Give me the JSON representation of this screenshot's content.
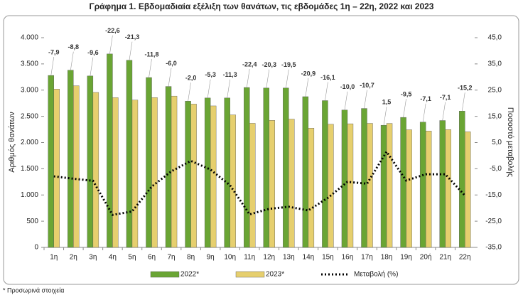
{
  "chart_data": {
    "type": "bar-line",
    "title": "Γράφημα 1.  Εβδομαδιαία εξέλιξη των θανάτων, τις εβδομάδες 1η – 22η, 2022 και 2023",
    "ylabel": "Αριθμός θανάτων",
    "y2label": "Ποσοστό μεταβολής",
    "footnote": "* Προσωρινά στοιχεία",
    "categories": [
      "1η",
      "2η",
      "3η",
      "4η",
      "5η",
      "6η",
      "7η",
      "8η",
      "9η",
      "10η",
      "11η",
      "12η",
      "13η",
      "14η",
      "15η",
      "16η",
      "17η",
      "18η",
      "19η",
      "20ή",
      "21η",
      "22η"
    ],
    "series": [
      {
        "name": "2022*",
        "color": "#6aa534",
        "values": [
          3280,
          3380,
          3270,
          3690,
          3570,
          3240,
          3070,
          2790,
          2850,
          2850,
          3050,
          3040,
          3040,
          2875,
          2800,
          2620,
          2650,
          2330,
          2480,
          2390,
          2420,
          2600
        ]
      },
      {
        "name": "2023*",
        "color": "#e6cf6e",
        "values": [
          3021,
          3083,
          2956,
          2856,
          2810,
          2858,
          2886,
          2734,
          2699,
          2528,
          2367,
          2423,
          2447,
          2274,
          2349,
          2358,
          2366,
          2365,
          2244,
          2220,
          2248,
          2205
        ]
      },
      {
        "name": "Μεταβολή (%)",
        "color": "#000000",
        "axis": "y2",
        "values": [
          -7.9,
          -8.8,
          -9.6,
          -22.6,
          -21.3,
          -11.8,
          -6.0,
          -2.0,
          -5.3,
          -11.3,
          -22.4,
          -20.3,
          -19.5,
          -20.9,
          -16.1,
          -10.0,
          -10.7,
          1.5,
          -9.5,
          -7.1,
          -7.1,
          -15.2
        ],
        "value_labels": [
          "-7,9",
          "-8,8",
          "-9,6",
          "-22,6",
          "-21,3",
          "-11,8",
          "-6,0",
          "-2,0",
          "-5,3",
          "-11,3",
          "-22,4",
          "-20,3",
          "-19,5",
          "-20,9",
          "-16,1",
          "-10,0",
          "-10,7",
          "1,5",
          "-9,5",
          "-7,1",
          "-7,1",
          "-15,2"
        ]
      }
    ],
    "ylim": [
      0,
      4000
    ],
    "yticks": [
      0,
      {
        "value": 500,
        "label": "500"
      },
      {
        "value": 1000,
        "label": "1.000"
      },
      {
        "value": 1500,
        "label": "1.500"
      },
      {
        "value": 2000,
        "label": "2.000"
      },
      {
        "value": 2500,
        "label": "2.500"
      },
      {
        "value": 3000,
        "label": "3.000"
      },
      {
        "value": 3500,
        "label": "3.500"
      },
      {
        "value": 4000,
        "label": "4.000"
      }
    ],
    "y2lim": [
      -35,
      45
    ],
    "y2ticks": [
      {
        "value": -35,
        "label": "-35,0"
      },
      {
        "value": -25,
        "label": "-25,0"
      },
      {
        "value": -15,
        "label": "-15,0"
      },
      {
        "value": -5,
        "label": "-5,0"
      },
      {
        "value": 5,
        "label": "5,0"
      },
      {
        "value": 15,
        "label": "15,0"
      },
      {
        "value": 25,
        "label": "25,0"
      },
      {
        "value": 35,
        "label": "35,0"
      },
      {
        "value": 45,
        "label": "45,0"
      }
    ],
    "grid": false,
    "legend": "bottom"
  }
}
